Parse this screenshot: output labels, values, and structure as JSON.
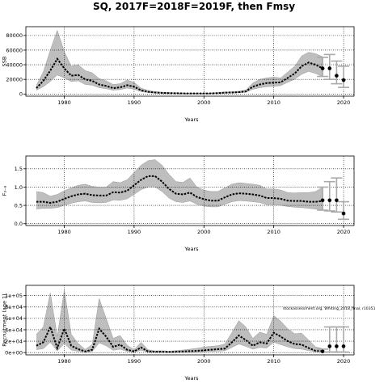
{
  "figure": {
    "title": "SQ, 2017F=2018F=2019F, then Fmsy",
    "annotation": "stockassessment.org, Whiting_2018_final, r10351"
  },
  "chart_data": [
    {
      "type": "line",
      "title": "",
      "xlabel": "Years",
      "ylabel": "SSB",
      "xlim": [
        1974.5,
        2021.5
      ],
      "ylim": [
        -3000,
        92000
      ],
      "xticks": [
        1980,
        1990,
        2000,
        2010,
        2020
      ],
      "yticks": [
        0,
        20000,
        40000,
        60000,
        80000
      ],
      "ytick_labels": [
        "0",
        "20000",
        "40000",
        "60000",
        "80000"
      ],
      "grid": true,
      "x": [
        1976,
        1977,
        1978,
        1979,
        1980,
        1981,
        1982,
        1983,
        1984,
        1985,
        1986,
        1987,
        1988,
        1989,
        1990,
        1991,
        1992,
        1993,
        1994,
        1995,
        1996,
        1997,
        1998,
        1999,
        2000,
        2001,
        2002,
        2003,
        2004,
        2005,
        2006,
        2007,
        2008,
        2009,
        2010,
        2011,
        2012,
        2013,
        2014,
        2015,
        2016,
        2017
      ],
      "series": [
        {
          "values": [
            8000,
            18000,
            32000,
            48000,
            35000,
            25000,
            26000,
            20000,
            18000,
            13000,
            11000,
            8000,
            9000,
            12000,
            10000,
            5000,
            3000,
            2000,
            1500,
            1200,
            1000,
            800,
            700,
            700,
            700,
            800,
            1200,
            1800,
            2000,
            2500,
            3500,
            10000,
            13000,
            15000,
            15500,
            16000,
            22000,
            28000,
            38000,
            43000,
            40000,
            35000
          ]
        },
        {
          "values": [
            12000,
            30000,
            60000,
            87000,
            58000,
            38000,
            40000,
            32000,
            29000,
            21000,
            18000,
            13000,
            14000,
            19000,
            16000,
            8000,
            5000,
            3200,
            2400,
            1900,
            1600,
            1300,
            1100,
            1100,
            1100,
            1300,
            1900,
            2800,
            3100,
            3800,
            5500,
            15000,
            20000,
            22000,
            23000,
            22000,
            30000,
            38000,
            52000,
            57000,
            55000,
            51000
          ]
        },
        {
          "values": [
            5000,
            10000,
            17000,
            26000,
            22000,
            17000,
            18000,
            13000,
            12000,
            8500,
            7200,
            5200,
            6000,
            8000,
            6500,
            3300,
            1900,
            1300,
            1000,
            800,
            650,
            500,
            450,
            450,
            450,
            500,
            800,
            1200,
            1300,
            1600,
            2300,
            6500,
            8500,
            10000,
            10500,
            11500,
            16000,
            20000,
            27000,
            31000,
            28000,
            24000
          ]
        }
      ],
      "forecast": {
        "x": [
          2017,
          2018,
          2019,
          2020
        ],
        "median": [
          35000,
          35000,
          25000,
          19000
        ],
        "high": [
          50000,
          54000,
          45000,
          38000
        ],
        "low": [
          24000,
          20000,
          14000,
          9000
        ]
      },
      "colors": {
        "median": "#000000",
        "band": "#bebebe",
        "forecast_bar": "#aaaaaa",
        "ref_line": "#000000"
      }
    },
    {
      "type": "line",
      "title": "",
      "xlabel": "Years",
      "ylabel": "F₃₋₈",
      "xlim": [
        1974.5,
        2021.5
      ],
      "ylim": [
        -0.05,
        1.85
      ],
      "xticks": [
        1980,
        1990,
        2000,
        2010,
        2020
      ],
      "yticks": [
        0,
        0.5,
        1,
        1.5
      ],
      "ytick_labels": [
        "0.0",
        "0.5",
        "1.0",
        "1.5"
      ],
      "grid": true,
      "x": [
        1976,
        1977,
        1978,
        1979,
        1980,
        1981,
        1982,
        1983,
        1984,
        1985,
        1986,
        1987,
        1988,
        1989,
        1990,
        1991,
        1992,
        1993,
        1994,
        1995,
        1996,
        1997,
        1998,
        1999,
        2000,
        2001,
        2002,
        2003,
        2004,
        2005,
        2006,
        2007,
        2008,
        2009,
        2010,
        2011,
        2012,
        2013,
        2014,
        2015,
        2016,
        2017
      ],
      "series": [
        {
          "values": [
            0.6,
            0.6,
            0.57,
            0.6,
            0.68,
            0.75,
            0.8,
            0.82,
            0.78,
            0.77,
            0.77,
            0.86,
            0.85,
            0.9,
            1.05,
            1.2,
            1.3,
            1.3,
            1.15,
            0.95,
            0.82,
            0.8,
            0.85,
            0.73,
            0.67,
            0.63,
            0.63,
            0.72,
            0.8,
            0.83,
            0.82,
            0.8,
            0.77,
            0.7,
            0.7,
            0.68,
            0.63,
            0.62,
            0.62,
            0.6,
            0.6,
            0.62
          ]
        },
        {
          "values": [
            0.88,
            0.85,
            0.75,
            0.8,
            0.9,
            0.98,
            1.05,
            1.08,
            1.02,
            1.0,
            1.0,
            1.15,
            1.12,
            1.2,
            1.4,
            1.6,
            1.72,
            1.75,
            1.6,
            1.35,
            1.15,
            1.13,
            1.25,
            1.0,
            0.92,
            0.88,
            0.88,
            0.98,
            1.08,
            1.12,
            1.1,
            1.08,
            1.05,
            0.95,
            0.95,
            0.92,
            0.85,
            0.84,
            0.85,
            0.85,
            0.88,
            1.0
          ]
        },
        {
          "values": [
            0.4,
            0.42,
            0.42,
            0.44,
            0.5,
            0.56,
            0.6,
            0.62,
            0.58,
            0.57,
            0.58,
            0.65,
            0.64,
            0.68,
            0.8,
            0.93,
            1.0,
            1.0,
            0.88,
            0.7,
            0.6,
            0.58,
            0.62,
            0.53,
            0.48,
            0.46,
            0.46,
            0.53,
            0.6,
            0.63,
            0.62,
            0.6,
            0.58,
            0.52,
            0.52,
            0.5,
            0.47,
            0.45,
            0.44,
            0.42,
            0.4,
            0.38
          ]
        }
      ],
      "forecast": {
        "x": [
          2017,
          2018,
          2019,
          2020
        ],
        "median": [
          0.64,
          0.64,
          0.64,
          0.28
        ],
        "high": [
          1.0,
          1.15,
          1.25,
          0.6
        ],
        "low": [
          0.37,
          0.35,
          0.32,
          0.12
        ]
      },
      "colors": {
        "median": "#000000",
        "band": "#bebebe",
        "forecast_bar": "#aaaaaa",
        "ref_line": "#000000"
      }
    },
    {
      "type": "line",
      "title": "",
      "xlabel": "Years",
      "ylabel": "Recruitment (age 1)",
      "xlim": [
        1974.5,
        2021.5
      ],
      "ylim": [
        -4000,
        118000
      ],
      "xticks": [
        1980,
        1990,
        2000,
        2010,
        2020
      ],
      "yticks": [
        0,
        20000,
        40000,
        60000,
        80000,
        100000
      ],
      "ytick_labels": [
        "0e+00",
        "2e+04",
        "4e+04",
        "6e+04",
        "8e+04",
        "1e+05"
      ],
      "grid": true,
      "x": [
        1976,
        1977,
        1978,
        1979,
        1980,
        1981,
        1982,
        1983,
        1984,
        1985,
        1986,
        1987,
        1988,
        1989,
        1990,
        1991,
        1992,
        1993,
        1994,
        1995,
        1996,
        1997,
        1998,
        1999,
        2000,
        2001,
        2002,
        2003,
        2004,
        2005,
        2006,
        2007,
        2008,
        2009,
        2010,
        2011,
        2012,
        2013,
        2014,
        2015,
        2016,
        2017
      ],
      "series": [
        {
          "values": [
            12000,
            18000,
            45000,
            8000,
            42000,
            12000,
            6000,
            2000,
            5000,
            42000,
            28000,
            10000,
            14000,
            5000,
            2000,
            9000,
            2000,
            1500,
            1500,
            1000,
            1500,
            2000,
            2500,
            3000,
            4000,
            5000,
            6000,
            7000,
            18000,
            30000,
            22000,
            12000,
            18000,
            16000,
            35000,
            28000,
            20000,
            15000,
            14000,
            8000,
            3000,
            2000
          ]
        },
        {
          "values": [
            32000,
            45000,
            105000,
            28000,
            110000,
            32000,
            16000,
            5500,
            14000,
            95000,
            60000,
            25000,
            30000,
            13000,
            5000,
            18000,
            5000,
            3000,
            3200,
            2600,
            3500,
            4500,
            6000,
            7500,
            9500,
            11000,
            12000,
            15000,
            35000,
            56000,
            45000,
            25000,
            36000,
            32000,
            65000,
            55000,
            42000,
            33000,
            34000,
            22000,
            10000,
            7000
          ]
        },
        {
          "values": [
            5000,
            7000,
            18000,
            3000,
            16000,
            4500,
            2200,
            800,
            1700,
            17000,
            12000,
            4000,
            6000,
            2000,
            800,
            4000,
            800,
            600,
            600,
            400,
            600,
            800,
            1000,
            1200,
            1600,
            2000,
            2500,
            3200,
            9000,
            15000,
            11000,
            6000,
            9000,
            8000,
            18000,
            14000,
            10000,
            7000,
            6000,
            3500,
            1200,
            800
          ]
        }
      ],
      "forecast": {
        "x": [
          2017,
          2018,
          2019,
          2020
        ],
        "median": [
          2000,
          11000,
          11000,
          11000
        ],
        "high": [
          6000,
          45000,
          45000,
          45000
        ],
        "low": [
          800,
          1000,
          1000,
          1000
        ]
      },
      "colors": {
        "median": "#000000",
        "band": "#bebebe",
        "forecast_bar": "#aaaaaa",
        "ref_line": "#000000"
      }
    }
  ]
}
